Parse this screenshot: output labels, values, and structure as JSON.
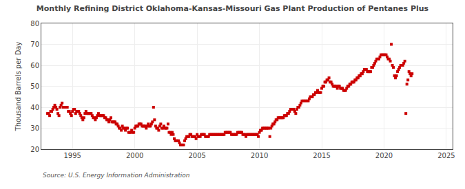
{
  "chart_data": {
    "type": "scatter",
    "title": "Monthly Refining District Oklahoma-Kansas-Missouri Gas Plant Production of Pentanes Plus",
    "ylabel": "Thousand Barrels per Day",
    "source": "Source: U.S. Energy Information Administration",
    "color": "#cc0000",
    "marker": "square",
    "grid": true,
    "xlim": [
      1992.5,
      2025.5
    ],
    "ylim": [
      20,
      80
    ],
    "xticks": [
      1995,
      2000,
      2005,
      2010,
      2015,
      2020,
      2025
    ],
    "yticks": [
      20,
      30,
      40,
      50,
      60,
      70,
      80
    ],
    "x": [
      1993.0,
      1993.083,
      1993.167,
      1993.25,
      1993.333,
      1993.417,
      1993.5,
      1993.583,
      1993.667,
      1993.75,
      1993.833,
      1993.917,
      1994.0,
      1994.083,
      1994.167,
      1994.25,
      1994.333,
      1994.417,
      1994.5,
      1994.583,
      1994.667,
      1994.75,
      1994.833,
      1994.917,
      1995.0,
      1995.083,
      1995.167,
      1995.25,
      1995.333,
      1995.417,
      1995.5,
      1995.583,
      1995.667,
      1995.75,
      1995.833,
      1995.917,
      1996.0,
      1996.083,
      1996.167,
      1996.25,
      1996.333,
      1996.417,
      1996.5,
      1996.583,
      1996.667,
      1996.75,
      1996.833,
      1996.917,
      1997.0,
      1997.083,
      1997.167,
      1997.25,
      1997.333,
      1997.417,
      1997.5,
      1997.583,
      1997.667,
      1997.75,
      1997.833,
      1997.917,
      1998.0,
      1998.083,
      1998.167,
      1998.25,
      1998.333,
      1998.417,
      1998.5,
      1998.583,
      1998.667,
      1998.75,
      1998.833,
      1998.917,
      1999.0,
      1999.083,
      1999.167,
      1999.25,
      1999.333,
      1999.417,
      1999.5,
      1999.583,
      1999.667,
      1999.75,
      1999.833,
      1999.917,
      2000.0,
      2000.083,
      2000.167,
      2000.25,
      2000.333,
      2000.417,
      2000.5,
      2000.583,
      2000.667,
      2000.75,
      2000.833,
      2000.917,
      2001.0,
      2001.083,
      2001.167,
      2001.25,
      2001.333,
      2001.417,
      2001.5,
      2001.583,
      2001.667,
      2001.75,
      2001.833,
      2001.917,
      2002.0,
      2002.083,
      2002.167,
      2002.25,
      2002.333,
      2002.417,
      2002.5,
      2002.583,
      2002.667,
      2002.75,
      2002.833,
      2002.917,
      2003.0,
      2003.083,
      2003.167,
      2003.25,
      2003.333,
      2003.417,
      2003.5,
      2003.583,
      2003.667,
      2003.75,
      2003.833,
      2003.917,
      2004.0,
      2004.083,
      2004.167,
      2004.25,
      2004.333,
      2004.417,
      2004.5,
      2004.583,
      2004.667,
      2004.75,
      2004.833,
      2004.917,
      2005.0,
      2005.083,
      2005.167,
      2005.25,
      2005.333,
      2005.417,
      2005.5,
      2005.583,
      2005.667,
      2005.75,
      2005.833,
      2005.917,
      2006.0,
      2006.083,
      2006.167,
      2006.25,
      2006.333,
      2006.417,
      2006.5,
      2006.583,
      2006.667,
      2006.75,
      2006.833,
      2006.917,
      2007.0,
      2007.083,
      2007.167,
      2007.25,
      2007.333,
      2007.417,
      2007.5,
      2007.583,
      2007.667,
      2007.75,
      2007.833,
      2007.917,
      2008.0,
      2008.083,
      2008.167,
      2008.25,
      2008.333,
      2008.417,
      2008.5,
      2008.583,
      2008.667,
      2008.75,
      2008.833,
      2008.917,
      2009.0,
      2009.083,
      2009.167,
      2009.25,
      2009.333,
      2009.417,
      2009.5,
      2009.583,
      2009.667,
      2009.75,
      2009.833,
      2009.917,
      2010.0,
      2010.083,
      2010.167,
      2010.25,
      2010.333,
      2010.417,
      2010.5,
      2010.583,
      2010.667,
      2010.75,
      2010.833,
      2010.917,
      2011.0,
      2011.083,
      2011.167,
      2011.25,
      2011.333,
      2011.417,
      2011.5,
      2011.583,
      2011.667,
      2011.75,
      2011.833,
      2011.917,
      2012.0,
      2012.083,
      2012.167,
      2012.25,
      2012.333,
      2012.417,
      2012.5,
      2012.583,
      2012.667,
      2012.75,
      2012.833,
      2012.917,
      2013.0,
      2013.083,
      2013.167,
      2013.25,
      2013.333,
      2013.417,
      2013.5,
      2013.583,
      2013.667,
      2013.75,
      2013.833,
      2013.917,
      2014.0,
      2014.083,
      2014.167,
      2014.25,
      2014.333,
      2014.417,
      2014.5,
      2014.583,
      2014.667,
      2014.75,
      2014.833,
      2014.917,
      2015.0,
      2015.083,
      2015.167,
      2015.25,
      2015.333,
      2015.417,
      2015.5,
      2015.583,
      2015.667,
      2015.75,
      2015.833,
      2015.917,
      2016.0,
      2016.083,
      2016.167,
      2016.25,
      2016.333,
      2016.417,
      2016.5,
      2016.583,
      2016.667,
      2016.75,
      2016.833,
      2016.917,
      2017.0,
      2017.083,
      2017.167,
      2017.25,
      2017.333,
      2017.417,
      2017.5,
      2017.583,
      2017.667,
      2017.75,
      2017.833,
      2017.917,
      2018.0,
      2018.083,
      2018.167,
      2018.25,
      2018.333,
      2018.417,
      2018.5,
      2018.583,
      2018.667,
      2018.75,
      2018.833,
      2018.917,
      2019.0,
      2019.083,
      2019.167,
      2019.25,
      2019.333,
      2019.417,
      2019.5,
      2019.583,
      2019.667,
      2019.75,
      2019.833,
      2019.917,
      2020.0,
      2020.083,
      2020.167,
      2020.25,
      2020.333,
      2020.417,
      2020.5,
      2020.583,
      2020.667,
      2020.75,
      2020.833,
      2020.917,
      2021.0,
      2021.083,
      2021.167,
      2021.25,
      2021.333,
      2021.417,
      2021.5,
      2021.583,
      2021.667,
      2021.75,
      2021.833,
      2021.917,
      2022.0,
      2022.083,
      2022.167,
      2022.25
    ],
    "values": [
      37,
      37,
      36,
      38,
      38,
      39,
      40,
      41,
      40,
      39,
      37,
      36,
      40,
      41,
      42,
      40,
      40,
      40,
      40,
      40,
      38,
      38,
      37,
      36,
      38,
      39,
      39,
      37,
      38,
      38,
      38,
      37,
      36,
      35,
      34,
      35,
      37,
      38,
      37,
      37,
      37,
      37,
      37,
      36,
      35,
      35,
      34,
      35,
      36,
      37,
      36,
      36,
      36,
      36,
      36,
      35,
      35,
      34,
      34,
      33,
      34,
      35,
      33,
      33,
      33,
      33,
      32,
      32,
      31,
      30,
      30,
      29,
      31,
      30,
      30,
      29,
      30,
      30,
      28,
      28,
      28,
      29,
      28,
      28,
      30,
      31,
      31,
      31,
      32,
      32,
      32,
      31,
      31,
      31,
      31,
      30,
      31,
      32,
      31,
      31,
      32,
      33,
      40,
      34,
      31,
      30,
      30,
      29,
      31,
      32,
      30,
      30,
      31,
      30,
      30,
      30,
      32,
      28,
      28,
      27,
      28,
      27,
      25,
      24,
      24,
      24,
      24,
      23,
      22,
      22,
      22,
      22,
      24,
      25,
      26,
      26,
      26,
      27,
      27,
      26,
      26,
      26,
      26,
      25,
      27,
      26,
      26,
      26,
      27,
      27,
      27,
      27,
      26,
      26,
      26,
      26,
      27,
      27,
      27,
      27,
      27,
      27,
      27,
      27,
      27,
      27,
      27,
      27,
      27,
      27,
      27,
      28,
      28,
      28,
      28,
      28,
      28,
      27,
      27,
      27,
      27,
      27,
      27,
      28,
      28,
      28,
      28,
      28,
      27,
      27,
      27,
      26,
      27,
      27,
      27,
      27,
      27,
      27,
      27,
      27,
      27,
      27,
      27,
      26,
      28,
      29,
      29,
      30,
      30,
      30,
      30,
      30,
      30,
      30,
      26,
      30,
      31,
      32,
      32,
      33,
      34,
      34,
      35,
      35,
      35,
      35,
      35,
      35,
      36,
      36,
      36,
      37,
      37,
      38,
      39,
      39,
      39,
      39,
      38,
      37,
      39,
      40,
      40,
      41,
      42,
      43,
      43,
      43,
      43,
      43,
      43,
      43,
      44,
      45,
      45,
      45,
      46,
      46,
      47,
      47,
      48,
      47,
      47,
      47,
      49,
      50,
      50,
      52,
      52,
      53,
      53,
      54,
      52,
      52,
      51,
      50,
      50,
      50,
      50,
      49,
      50,
      50,
      49,
      49,
      49,
      48,
      48,
      48,
      49,
      50,
      50,
      51,
      51,
      52,
      52,
      52,
      53,
      53,
      54,
      54,
      55,
      55,
      56,
      56,
      57,
      58,
      58,
      58,
      57,
      57,
      57,
      57,
      59,
      59,
      60,
      61,
      62,
      63,
      63,
      63,
      64,
      65,
      65,
      65,
      65,
      65,
      65,
      64,
      63,
      63,
      62,
      70,
      60,
      59,
      55,
      54,
      55,
      57,
      58,
      59,
      60,
      60,
      60,
      61,
      62,
      37,
      51,
      53,
      57,
      56,
      55,
      56
    ]
  }
}
